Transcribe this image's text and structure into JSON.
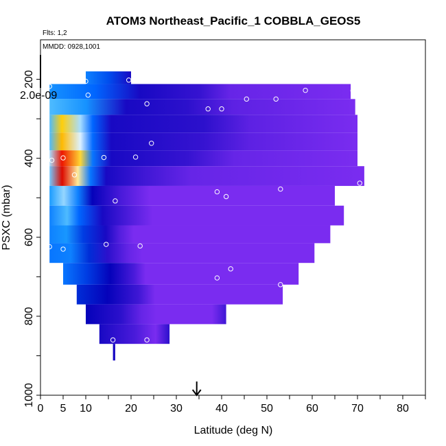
{
  "chart_data": {
    "type": "heatmap",
    "title": "ATOM3 Northeast_Pacific_1 COBBLA_GEOS5",
    "flights_label": "Flts: 1,2",
    "dates_label": "MMDD: 0928,1001",
    "colorbar_value_label": "2.0e-09",
    "xlabel": "Latitude (deg N)",
    "ylabel": "PSXC (mbar)",
    "xlim": [
      0,
      85
    ],
    "ylim": [
      1000,
      100
    ],
    "y_inverted": true,
    "x_ticks": [
      0,
      5,
      10,
      20,
      30,
      40,
      50,
      60,
      70,
      80
    ],
    "x_tick_labels": [
      "0",
      "5",
      "10",
      "20",
      "30",
      "40",
      "50",
      "60",
      "70",
      "80"
    ],
    "x_minor_ticks": [
      15,
      25,
      35,
      45,
      55,
      65,
      75,
      85
    ],
    "y_ticks": [
      200,
      400,
      600,
      800,
      1000
    ],
    "y_tick_labels": [
      "200",
      "400",
      "600",
      "800",
      "1000"
    ],
    "y_minor_ticks": [
      300,
      500,
      700,
      900
    ],
    "arrow_latitude": 34.5,
    "colorscale": [
      "#7a2cf0",
      "#0000b8",
      "#0066ff",
      "#22aaff",
      "#ffffff",
      "#ffcc00",
      "#ff8800",
      "#ff2200",
      "#cc0000"
    ],
    "rows": [
      {
        "p_top": 180,
        "p_bot": 212,
        "lat_start": 10,
        "lat_end": 20,
        "stops": [
          [
            0,
            0.3
          ],
          [
            0.5,
            0.22
          ],
          [
            1,
            0.1
          ]
        ]
      },
      {
        "p_top": 212,
        "p_bot": 250,
        "lat_start": 2,
        "lat_end": 68.5,
        "stops": [
          [
            0,
            0.33
          ],
          [
            0.15,
            0.25
          ],
          [
            0.3,
            0.1
          ],
          [
            0.5,
            0.07
          ],
          [
            0.6,
            0.02
          ],
          [
            1,
            0
          ]
        ]
      },
      {
        "p_top": 250,
        "p_bot": 290,
        "lat_start": 2,
        "lat_end": 69.5,
        "stops": [
          [
            0,
            0.4
          ],
          [
            0.12,
            0.33
          ],
          [
            0.25,
            0.1
          ],
          [
            0.45,
            0.08
          ],
          [
            0.6,
            0.03
          ],
          [
            1,
            0
          ]
        ]
      },
      {
        "p_top": 290,
        "p_bot": 335,
        "lat_start": 2,
        "lat_end": 70,
        "stops": [
          [
            0,
            0.4
          ],
          [
            0.04,
            0.62
          ],
          [
            0.1,
            0.45
          ],
          [
            0.14,
            0.25
          ],
          [
            0.2,
            0.1
          ],
          [
            0.5,
            0.08
          ],
          [
            0.65,
            0.03
          ],
          [
            1,
            0
          ]
        ]
      },
      {
        "p_top": 335,
        "p_bot": 380,
        "lat_start": 2,
        "lat_end": 70,
        "stops": [
          [
            0,
            0.4
          ],
          [
            0.04,
            0.66
          ],
          [
            0.1,
            0.48
          ],
          [
            0.14,
            0.26
          ],
          [
            0.2,
            0.1
          ],
          [
            0.5,
            0.07
          ],
          [
            0.65,
            0.03
          ],
          [
            1,
            0
          ]
        ]
      },
      {
        "p_top": 380,
        "p_bot": 420,
        "lat_start": 2,
        "lat_end": 70,
        "stops": [
          [
            0,
            0.45
          ],
          [
            0.04,
            0.92
          ],
          [
            0.1,
            0.6
          ],
          [
            0.14,
            0.28
          ],
          [
            0.2,
            0.1
          ],
          [
            0.45,
            0.07
          ],
          [
            0.6,
            0.02
          ],
          [
            1,
            0
          ]
        ]
      },
      {
        "p_top": 420,
        "p_bot": 470,
        "lat_start": 2,
        "lat_end": 71.5,
        "stops": [
          [
            0,
            0.42
          ],
          [
            0.04,
            0.96
          ],
          [
            0.09,
            0.55
          ],
          [
            0.13,
            0.28
          ],
          [
            0.18,
            0.1
          ],
          [
            0.3,
            0.06
          ],
          [
            0.45,
            0.02
          ],
          [
            1,
            0
          ]
        ]
      },
      {
        "p_top": 470,
        "p_bot": 520,
        "lat_start": 2,
        "lat_end": 65,
        "stops": [
          [
            0,
            0.35
          ],
          [
            0.05,
            0.44
          ],
          [
            0.1,
            0.3
          ],
          [
            0.15,
            0.12
          ],
          [
            0.25,
            0.05
          ],
          [
            0.35,
            0
          ],
          [
            1,
            0
          ]
        ]
      },
      {
        "p_top": 520,
        "p_bot": 570,
        "lat_start": 2,
        "lat_end": 67,
        "stops": [
          [
            0,
            0.3
          ],
          [
            0.06,
            0.4
          ],
          [
            0.1,
            0.25
          ],
          [
            0.18,
            0.1
          ],
          [
            0.28,
            0.04
          ],
          [
            0.35,
            0
          ],
          [
            1,
            0
          ]
        ]
      },
      {
        "p_top": 570,
        "p_bot": 615,
        "lat_start": 2,
        "lat_end": 64,
        "stops": [
          [
            0,
            0.3
          ],
          [
            0.06,
            0.34
          ],
          [
            0.12,
            0.2
          ],
          [
            0.2,
            0.1
          ],
          [
            0.25,
            0.04
          ],
          [
            0.3,
            0
          ],
          [
            1,
            0
          ]
        ]
      },
      {
        "p_top": 615,
        "p_bot": 665,
        "lat_start": 2,
        "lat_end": 60.5,
        "stops": [
          [
            0,
            0.28
          ],
          [
            0.08,
            0.3
          ],
          [
            0.15,
            0.18
          ],
          [
            0.22,
            0.08
          ],
          [
            0.3,
            0.02
          ],
          [
            0.35,
            0
          ],
          [
            1,
            0
          ]
        ]
      },
      {
        "p_top": 665,
        "p_bot": 720,
        "lat_start": 5,
        "lat_end": 57,
        "stops": [
          [
            0,
            0.28
          ],
          [
            0.1,
            0.2
          ],
          [
            0.2,
            0.12
          ],
          [
            0.3,
            0.05
          ],
          [
            0.35,
            0
          ],
          [
            1,
            0
          ]
        ]
      },
      {
        "p_top": 720,
        "p_bot": 770,
        "lat_start": 8,
        "lat_end": 53.5,
        "stops": [
          [
            0,
            0.18
          ],
          [
            0.15,
            0.12
          ],
          [
            0.3,
            0.06
          ],
          [
            0.38,
            0
          ],
          [
            1,
            0
          ]
        ]
      },
      {
        "p_top": 770,
        "p_bot": 820,
        "lat_start": 10,
        "lat_end": 41,
        "stops": [
          [
            0,
            0.12
          ],
          [
            0.25,
            0.08
          ],
          [
            0.4,
            0.02
          ],
          [
            0.5,
            0
          ],
          [
            0.9,
            0
          ],
          [
            1,
            0.06
          ]
        ]
      },
      {
        "p_top": 820,
        "p_bot": 870,
        "lat_start": 13,
        "lat_end": 28.5,
        "stops": [
          [
            0,
            0.1
          ],
          [
            0.5,
            0.05
          ],
          [
            0.8,
            0
          ],
          [
            1,
            0.08
          ]
        ]
      },
      {
        "p_top": 870,
        "p_bot": 912,
        "lat_start": 16,
        "lat_end": 16.5,
        "stops": [
          [
            0,
            0.1
          ],
          [
            1,
            0.1
          ]
        ]
      }
    ],
    "sample_points": [
      {
        "lat": 2,
        "p": 218
      },
      {
        "lat": 10,
        "p": 205
      },
      {
        "lat": 10.5,
        "p": 240
      },
      {
        "lat": 19.5,
        "p": 202
      },
      {
        "lat": 23.5,
        "p": 262
      },
      {
        "lat": 37,
        "p": 275
      },
      {
        "lat": 40,
        "p": 275
      },
      {
        "lat": 45.5,
        "p": 250
      },
      {
        "lat": 52,
        "p": 250
      },
      {
        "lat": 58.5,
        "p": 228
      },
      {
        "lat": 69,
        "p": 229
      },
      {
        "lat": 24.5,
        "p": 362
      },
      {
        "lat": 14,
        "p": 398
      },
      {
        "lat": 21,
        "p": 397
      },
      {
        "lat": 2.5,
        "p": 405
      },
      {
        "lat": 5,
        "p": 399
      },
      {
        "lat": 7.5,
        "p": 442
      },
      {
        "lat": 70.5,
        "p": 463
      },
      {
        "lat": 39,
        "p": 485
      },
      {
        "lat": 41,
        "p": 497
      },
      {
        "lat": 53,
        "p": 478
      },
      {
        "lat": 16.5,
        "p": 508
      },
      {
        "lat": 2,
        "p": 624
      },
      {
        "lat": 5,
        "p": 630
      },
      {
        "lat": 14.5,
        "p": 618
      },
      {
        "lat": 22,
        "p": 622
      },
      {
        "lat": 42,
        "p": 680
      },
      {
        "lat": 39,
        "p": 703
      },
      {
        "lat": 53,
        "p": 720
      },
      {
        "lat": 16,
        "p": 860
      },
      {
        "lat": 23.5,
        "p": 860
      }
    ]
  }
}
